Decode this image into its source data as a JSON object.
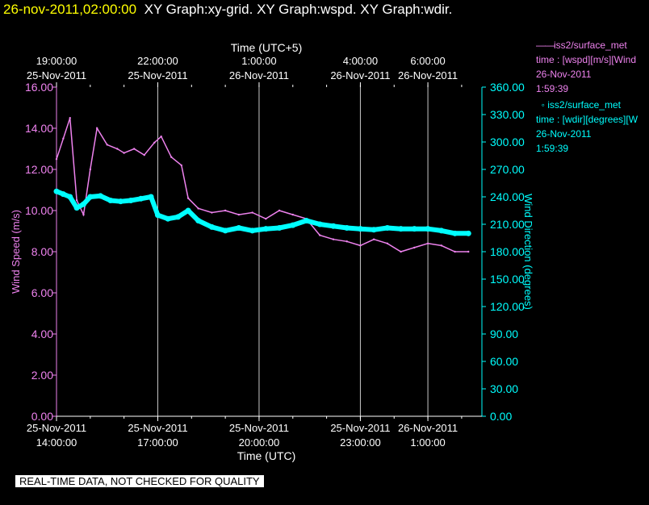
{
  "header": {
    "timestamp": "26-nov-2011,02:00:00",
    "graph_titles": "XY Graph:xy-grid.  XY Graph:wspd.  XY Graph:wdir."
  },
  "legend": {
    "wspd": {
      "line1": "iss2/surface_met",
      "line2": "time : [wspd][m/s][Wind",
      "line3": "26-Nov-2011",
      "line4": "1:59:39",
      "color": "#ee82ee"
    },
    "wdir": {
      "line1": "iss2/surface_met",
      "line2": "time : [wdir][degrees][W",
      "line3": "26-Nov-2011",
      "line4": "1:59:39",
      "color": "#00ffff"
    }
  },
  "notice": "REAL-TIME DATA, NOT CHECKED FOR QUALITY",
  "chart_data": {
    "type": "line",
    "x_bottom": {
      "label": "Time (UTC)",
      "ticks": [
        {
          "hours": 0,
          "date": "25-Nov-2011",
          "time": "14:00:00"
        },
        {
          "hours": 3,
          "date": "25-Nov-2011",
          "time": "17:00:00"
        },
        {
          "hours": 6,
          "date": "25-Nov-2011",
          "time": "20:00:00"
        },
        {
          "hours": 9,
          "date": "25-Nov-2011",
          "time": "23:00:00"
        },
        {
          "hours": 11,
          "date": "26-Nov-2011",
          "time": "1:00:00"
        }
      ],
      "range_hours": [
        0,
        12.6
      ]
    },
    "x_top": {
      "label": "Time (UTC+5)",
      "ticks": [
        {
          "hours": 0,
          "date": "25-Nov-2011",
          "time": "19:00:00"
        },
        {
          "hours": 3,
          "date": "25-Nov-2011",
          "time": "22:00:00"
        },
        {
          "hours": 6,
          "date": "26-Nov-2011",
          "time": "1:00:00"
        },
        {
          "hours": 9,
          "date": "26-Nov-2011",
          "time": "4:00:00"
        },
        {
          "hours": 11,
          "date": "26-Nov-2011",
          "time": "6:00:00"
        }
      ]
    },
    "y_left": {
      "label": "Wind Speed (m/s)",
      "range": [
        0,
        16
      ],
      "ticks": [
        "0.00",
        "2.00",
        "4.00",
        "6.00",
        "8.00",
        "10.00",
        "12.00",
        "14.00",
        "16.00"
      ]
    },
    "y_right": {
      "label": "Wind Direction (degrees)",
      "range": [
        0,
        360
      ],
      "ticks": [
        "0.00",
        "30.00",
        "60.00",
        "90.00",
        "120.00",
        "150.00",
        "180.00",
        "210.00",
        "240.00",
        "270.00",
        "300.00",
        "330.00",
        "360.00"
      ]
    },
    "grid": "vertical at major ticks",
    "series": [
      {
        "name": "iss2/surface_met wspd",
        "color": "#ee82ee",
        "axis": "left",
        "points": [
          [
            0.0,
            12.5
          ],
          [
            0.2,
            13.5
          ],
          [
            0.4,
            14.5
          ],
          [
            0.6,
            10.5
          ],
          [
            0.8,
            9.8
          ],
          [
            1.0,
            12.0
          ],
          [
            1.2,
            14.0
          ],
          [
            1.5,
            13.2
          ],
          [
            1.8,
            13.0
          ],
          [
            2.0,
            12.8
          ],
          [
            2.3,
            13.0
          ],
          [
            2.6,
            12.7
          ],
          [
            2.9,
            13.3
          ],
          [
            3.1,
            13.6
          ],
          [
            3.4,
            12.6
          ],
          [
            3.7,
            12.2
          ],
          [
            3.9,
            10.6
          ],
          [
            4.2,
            10.1
          ],
          [
            4.6,
            9.9
          ],
          [
            5.0,
            10.0
          ],
          [
            5.4,
            9.8
          ],
          [
            5.8,
            9.9
          ],
          [
            6.2,
            9.6
          ],
          [
            6.6,
            10.0
          ],
          [
            7.0,
            9.8
          ],
          [
            7.4,
            9.6
          ],
          [
            7.8,
            8.8
          ],
          [
            8.2,
            8.6
          ],
          [
            8.6,
            8.5
          ],
          [
            9.0,
            8.3
          ],
          [
            9.4,
            8.6
          ],
          [
            9.8,
            8.4
          ],
          [
            10.2,
            8.0
          ],
          [
            10.6,
            8.2
          ],
          [
            11.0,
            8.4
          ],
          [
            11.4,
            8.3
          ],
          [
            11.8,
            8.0
          ],
          [
            12.2,
            8.0
          ]
        ]
      },
      {
        "name": "iss2/surface_met wdir",
        "color": "#00ffff",
        "axis": "right",
        "points": [
          [
            0.0,
            246
          ],
          [
            0.2,
            243
          ],
          [
            0.4,
            240
          ],
          [
            0.6,
            228
          ],
          [
            0.8,
            232
          ],
          [
            1.0,
            240
          ],
          [
            1.3,
            241
          ],
          [
            1.6,
            236
          ],
          [
            1.9,
            235
          ],
          [
            2.2,
            236
          ],
          [
            2.5,
            238
          ],
          [
            2.8,
            240
          ],
          [
            3.0,
            220
          ],
          [
            3.3,
            216
          ],
          [
            3.6,
            218
          ],
          [
            3.9,
            225
          ],
          [
            4.2,
            214
          ],
          [
            4.6,
            207
          ],
          [
            5.0,
            203
          ],
          [
            5.4,
            206
          ],
          [
            5.8,
            203
          ],
          [
            6.2,
            205
          ],
          [
            6.6,
            206
          ],
          [
            7.0,
            209
          ],
          [
            7.4,
            214
          ],
          [
            7.8,
            210
          ],
          [
            8.2,
            208
          ],
          [
            8.6,
            206
          ],
          [
            9.0,
            205
          ],
          [
            9.4,
            204
          ],
          [
            9.8,
            206
          ],
          [
            10.2,
            205
          ],
          [
            10.6,
            205
          ],
          [
            11.0,
            205
          ],
          [
            11.4,
            203
          ],
          [
            11.8,
            200
          ],
          [
            12.2,
            200
          ]
        ]
      }
    ]
  }
}
